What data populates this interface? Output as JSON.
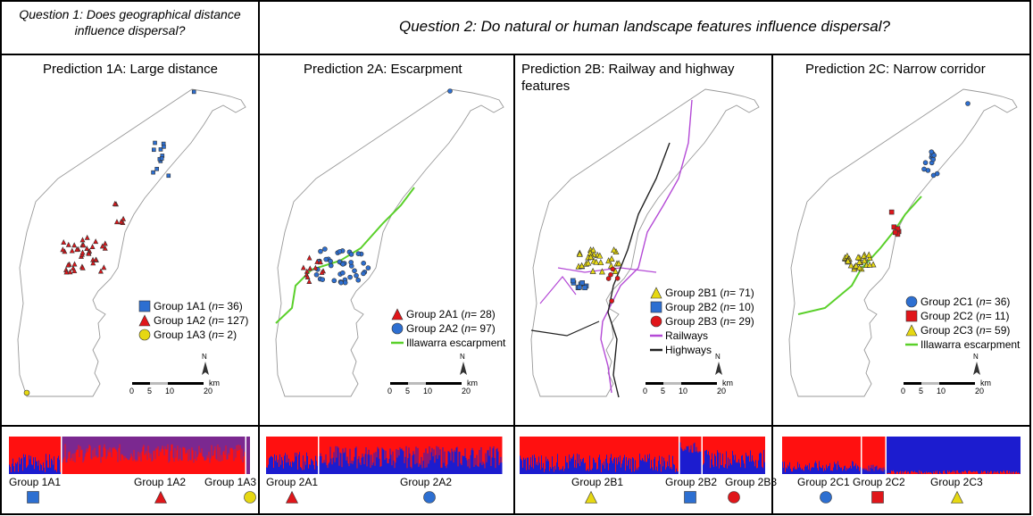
{
  "questions": {
    "q1": {
      "line1": "Question 1: Does geographical distance",
      "line2": "influence dispersal?"
    },
    "q2": "Question 2: Do natural or human landscape features influence dispersal?"
  },
  "colors": {
    "blue": "#2d6fd1",
    "red": "#e0161a",
    "yellow": "#e6d812",
    "purple": "#8a2aa8",
    "green": "#5ad02a",
    "railway": "#b44ad6",
    "highway": "#222222",
    "bar_blue": "#1c1ccf",
    "bar_red": "#ff1010",
    "bar_purple": "#7b2890"
  },
  "panels": [
    {
      "title": "Prediction 1A: Large distance",
      "legend": [
        {
          "shape": "square",
          "color": "blue",
          "label": "Group 1A1 (",
          "n": "n",
          "count": " = 36)"
        },
        {
          "shape": "triangle",
          "color": "red",
          "label": "Group 1A2 (",
          "n": "n",
          "count": " = 127)"
        },
        {
          "shape": "circle",
          "color": "yellow",
          "label": "Group 1A3 (",
          "n": "n",
          "count": " = 2)"
        }
      ],
      "groups": [
        {
          "name": "Group 1A1",
          "shape": "square",
          "color": "blue"
        },
        {
          "name": "Group 1A2",
          "shape": "triangle",
          "color": "red"
        },
        {
          "name": "Group 1A3",
          "shape": "circle",
          "color": "yellow"
        }
      ]
    },
    {
      "title": "Prediction 2A: Escarpment",
      "legend": [
        {
          "shape": "triangle",
          "color": "red",
          "label": "Group 2A1 (",
          "n": "n",
          "count": " = 28)"
        },
        {
          "shape": "circle",
          "color": "blue",
          "label": "Group 2A2 (",
          "n": "n",
          "count": " = 97)"
        },
        {
          "shape": "line",
          "color": "green",
          "label": "Illawarra escarpment",
          "n": "",
          "count": ""
        }
      ],
      "groups": [
        {
          "name": "Group 2A1",
          "shape": "triangle",
          "color": "red"
        },
        {
          "name": "Group 2A2",
          "shape": "circle",
          "color": "blue"
        }
      ]
    },
    {
      "title": "Prediction 2B: Railway and highway features",
      "legend": [
        {
          "shape": "triangle",
          "color": "yellow",
          "label": "Group 2B1 (",
          "n": "n",
          "count": " = 71)"
        },
        {
          "shape": "square",
          "color": "blue",
          "label": "Group 2B2 (",
          "n": "n",
          "count": " = 10)"
        },
        {
          "shape": "circle",
          "color": "red",
          "label": "Group 2B3 (",
          "n": "n",
          "count": " = 29)"
        },
        {
          "shape": "line",
          "color": "railway",
          "label": "Railways",
          "n": "",
          "count": ""
        },
        {
          "shape": "line",
          "color": "highway",
          "label": "Highways",
          "n": "",
          "count": ""
        }
      ],
      "groups": [
        {
          "name": "Group 2B1",
          "shape": "triangle",
          "color": "yellow"
        },
        {
          "name": "Group 2B2",
          "shape": "square",
          "color": "blue"
        },
        {
          "name": "Group 2B3",
          "shape": "circle",
          "color": "red"
        }
      ]
    },
    {
      "title": "Prediction 2C: Narrow corridor",
      "legend": [
        {
          "shape": "circle",
          "color": "blue",
          "label": "Group 2C1 (",
          "n": "n",
          "count": " = 36)"
        },
        {
          "shape": "square",
          "color": "red",
          "label": "Group 2C2 (",
          "n": "n",
          "count": " = 11)"
        },
        {
          "shape": "triangle",
          "color": "yellow",
          "label": "Group 2C3 (",
          "n": "n",
          "count": " = 59)"
        },
        {
          "shape": "line",
          "color": "green",
          "label": "Illawarra escarpment",
          "n": "",
          "count": ""
        }
      ],
      "groups": [
        {
          "name": "Group 2C1",
          "shape": "circle",
          "color": "blue"
        },
        {
          "name": "Group 2C2",
          "shape": "square",
          "color": "red"
        },
        {
          "name": "Group 2C3",
          "shape": "triangle",
          "color": "yellow"
        }
      ]
    }
  ],
  "scalebar": {
    "ticks": [
      "0",
      "5",
      "10",
      "20"
    ],
    "unit": "km",
    "north": "N"
  }
}
